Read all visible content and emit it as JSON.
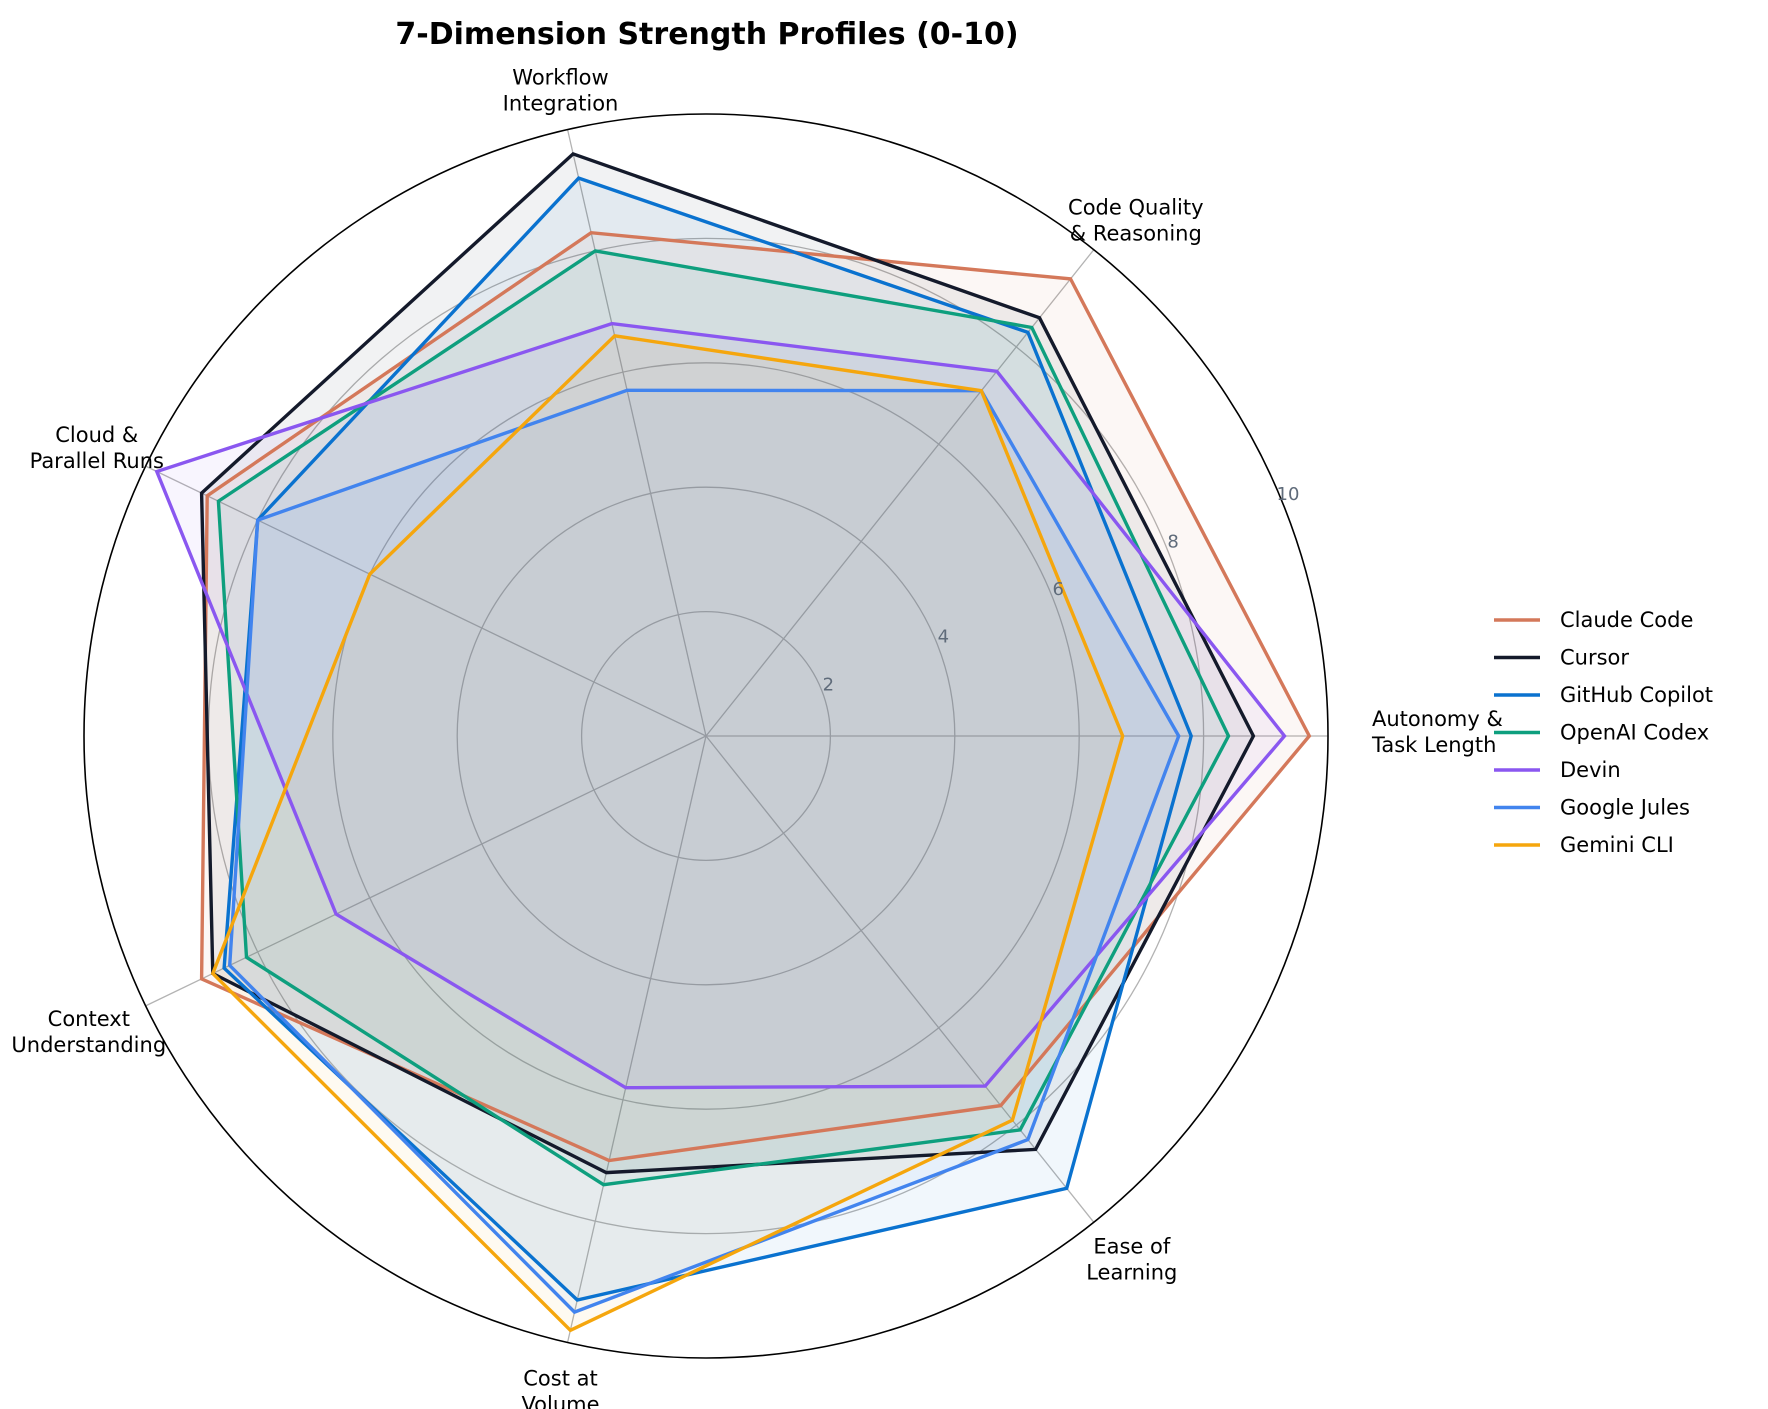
{
  "chart_data": {
    "type": "radar",
    "title": "7-Dimension Strength Profiles (0-10)",
    "axes": [
      [
        "Autonomy &",
        "Task Length"
      ],
      [
        "Code Quality",
        "& Reasoning"
      ],
      [
        "Workflow",
        "Integration"
      ],
      [
        "Cloud &",
        "Parallel Runs"
      ],
      [
        "Context",
        "Understanding"
      ],
      [
        "Cost at",
        "Volume"
      ],
      [
        "Ease of",
        "Learning"
      ]
    ],
    "rlim": [
      0,
      10
    ],
    "rticks": [
      "2",
      "4",
      "6",
      "8",
      "10"
    ],
    "rtick_values": [
      2,
      4,
      6,
      8,
      10
    ],
    "grid": true,
    "legend_position": "right",
    "series": [
      {
        "name": "Claude Code",
        "color": "#d4785a",
        "values": [
          9.7,
          9.4,
          8.3,
          8.9,
          9.0,
          7.0,
          7.6
        ]
      },
      {
        "name": "Cursor",
        "color": "#141a2b",
        "values": [
          8.8,
          8.6,
          9.6,
          9.0,
          8.8,
          7.2,
          8.5
        ]
      },
      {
        "name": "GitHub Copilot",
        "color": "#0a72cf",
        "values": [
          7.8,
          8.3,
          9.2,
          8.0,
          8.6,
          9.3,
          9.3
        ]
      },
      {
        "name": "OpenAI Codex",
        "color": "#0e9f7e",
        "values": [
          8.4,
          8.4,
          8.0,
          8.7,
          8.2,
          7.4,
          8.1
        ]
      },
      {
        "name": "Devin",
        "color": "#8a57f0",
        "values": [
          9.3,
          7.5,
          6.8,
          9.8,
          6.6,
          5.8,
          7.2
        ]
      },
      {
        "name": "Google Jules",
        "color": "#4284ee",
        "values": [
          7.6,
          7.1,
          5.7,
          8.0,
          8.5,
          9.5,
          8.3
        ]
      },
      {
        "name": "Gemini CLI",
        "color": "#f5a60d",
        "values": [
          6.7,
          7.1,
          6.6,
          6.0,
          8.8,
          9.8,
          7.9
        ]
      }
    ]
  }
}
